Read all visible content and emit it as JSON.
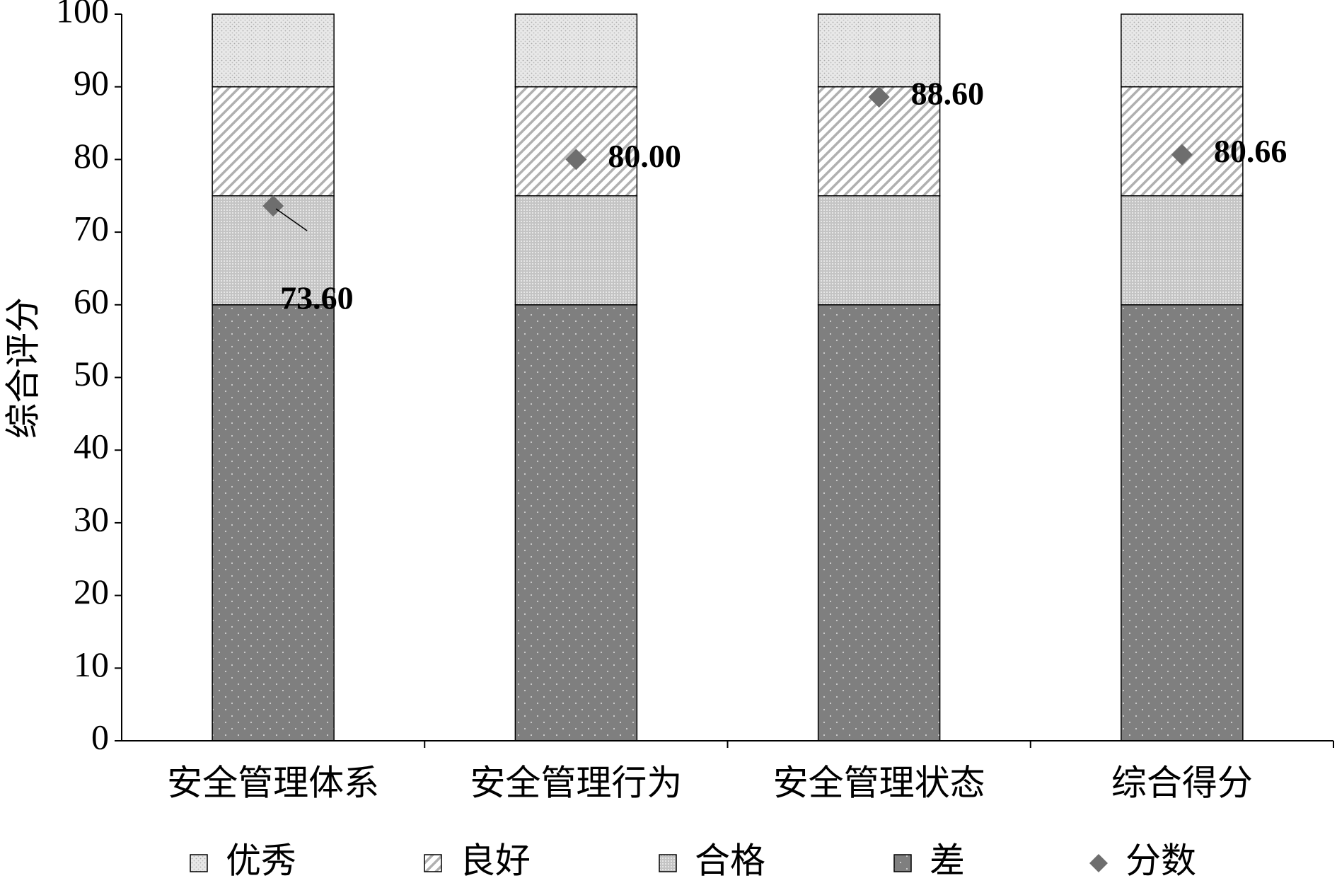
{
  "chart_data": {
    "type": "bar",
    "stacked": true,
    "y_label": "综合评分",
    "categories": [
      "安全管理体系",
      "安全管理行为",
      "安全管理状态",
      "综合得分"
    ],
    "series": [
      {
        "name": "优秀",
        "type": "bar",
        "pattern": "fine-dots",
        "color": "#e8e8e8",
        "values": [
          10,
          10,
          10,
          10
        ]
      },
      {
        "name": "良好",
        "type": "bar",
        "pattern": "hatch",
        "color": "#ffffff",
        "values": [
          15,
          15,
          15,
          15
        ]
      },
      {
        "name": "合格",
        "type": "bar",
        "pattern": "dense-dots",
        "color": "#c4c4c4",
        "values": [
          15,
          15,
          15,
          15
        ]
      },
      {
        "name": "差",
        "type": "bar",
        "pattern": "sparse-dots",
        "color": "#7f7f7f",
        "values": [
          60,
          60,
          60,
          60
        ]
      },
      {
        "name": "分数",
        "type": "scatter",
        "color": "#6e6e6e",
        "values": [
          73.6,
          80,
          88.6,
          80.66
        ],
        "value_labels": [
          "73.60",
          "80.00",
          "88.60",
          "80.66"
        ]
      }
    ],
    "ylim": [
      0,
      100
    ],
    "yticks": [
      0,
      10,
      20,
      30,
      40,
      50,
      60,
      70,
      80,
      90,
      100
    ],
    "grid": false
  }
}
